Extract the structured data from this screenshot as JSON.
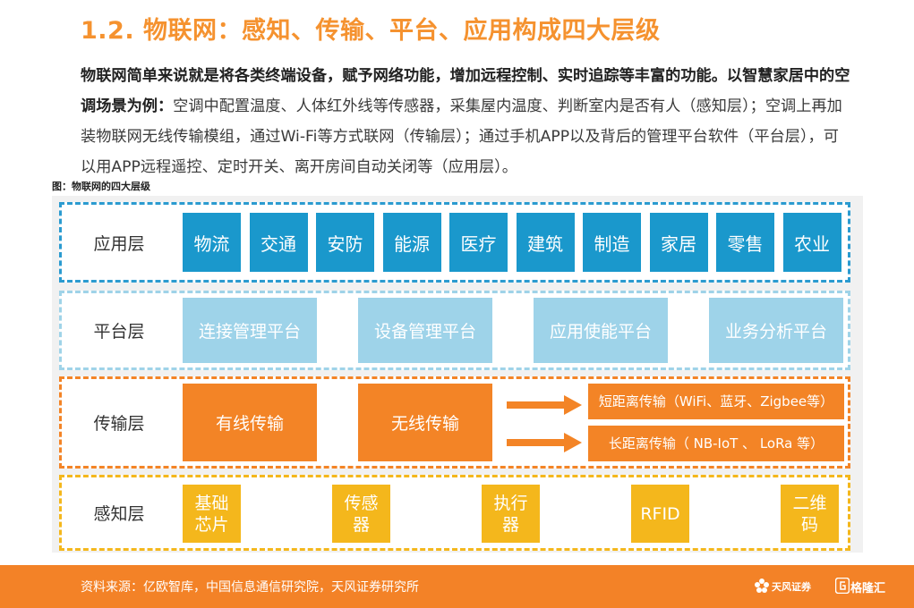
{
  "header": {
    "title": "1.2. 物联网：感知、传输、平台、应用构成四大层级"
  },
  "intro": {
    "bold": "物联网简单来说就是将各类终端设备，赋予网络功能，增加远程控制、实时追踪等丰富的功能。以智慧家居中的空调场景为例：",
    "body": "空调中配置温度、人体红外线等传感器，采集屋内温度、判断室内是否有人（感知层）；空调上再加装物联网无线传输模组，通过Wi-Fi等方式联网（传输层）；通过手机APP以及背后的管理平台软件（平台层），可以用APP远程遥控、定时开关、离开房间自动关闭等（应用层）。"
  },
  "figure": {
    "title": "图：物联网的四大层级"
  },
  "layers": {
    "application": {
      "label": "应用层",
      "items": [
        "物流",
        "交通",
        "安防",
        "能源",
        "医疗",
        "建筑",
        "制造",
        "家居",
        "零售",
        "农业"
      ]
    },
    "platform": {
      "label": "平台层",
      "items": [
        "连接管理平台",
        "设备管理平台",
        "应用使能平台",
        "业务分析平台"
      ]
    },
    "transport": {
      "label": "传输层",
      "wired": "有线传输",
      "wireless": "无线传输",
      "short_range": "短距离传输（WiFi、蓝牙、Zigbee等）",
      "long_range": "长距离传输（ NB-IoT 、 LoRa 等）"
    },
    "sensing": {
      "label": "感知层",
      "items": [
        "基础芯片",
        "传感器",
        "执行器",
        "RFID",
        "二维码"
      ]
    }
  },
  "footer": {
    "source": "资料来源：亿欧智库，中国信息通信研究院，天风证券研究所",
    "brand": "天风证券",
    "watermark": "格隆汇"
  },
  "colors": {
    "accent": "#f5922f",
    "application": "#1a98cc",
    "platform": "#9ed3e9",
    "transport": "#f38426",
    "sensing": "#f4b71c"
  }
}
